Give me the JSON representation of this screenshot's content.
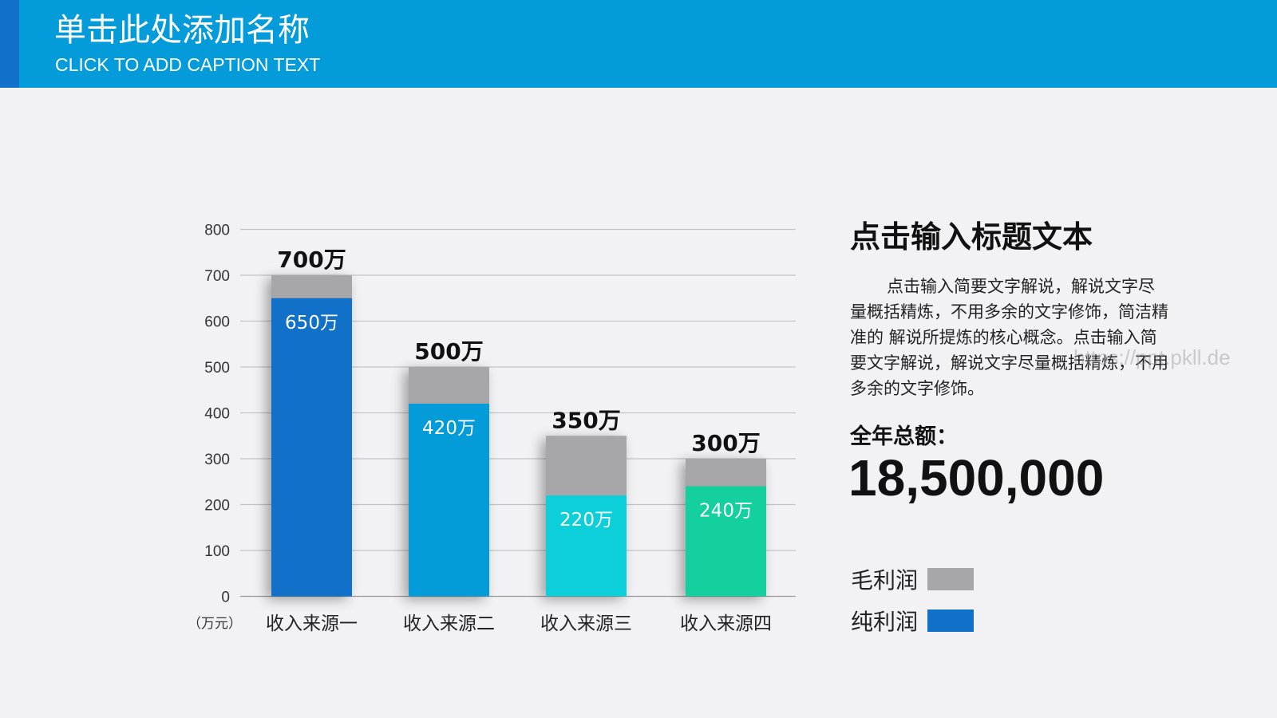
{
  "header": {
    "title": "单击此处添加名称",
    "subtitle": "CLICK TO ADD CAPTION TEXT"
  },
  "colors": {
    "header": "#039bd9",
    "accent": "#1170c8",
    "gross": "#a7a6a8",
    "bars": [
      "#1170c8",
      "#039bd8",
      "#0ccfd9",
      "#14cf9e"
    ]
  },
  "chart_data": {
    "type": "bar",
    "stacked": "overlay",
    "categories": [
      "收入来源一",
      "收入来源二",
      "收入来源三",
      "收入来源四"
    ],
    "series": [
      {
        "name": "毛利润",
        "values": [
          700,
          500,
          350,
          300
        ],
        "labels": [
          "700万",
          "500万",
          "350万",
          "300万"
        ]
      },
      {
        "name": "纯利润",
        "values": [
          650,
          420,
          220,
          240
        ],
        "labels": [
          "650万",
          "420万",
          "220万",
          "240万"
        ]
      }
    ],
    "yticks": [
      "0",
      "100",
      "200",
      "300",
      "400",
      "500",
      "600",
      "700",
      "800"
    ],
    "ylim": [
      0,
      800
    ],
    "yunit": "（万元）",
    "grid": true
  },
  "side": {
    "title": "点击输入标题文本",
    "description": "点击输入简要文字解说，解说文字尽量概括精炼，不用多余的文字修饰，简洁精准的 解说所提炼的核心概念。点击输入简要文字解说，解说文字尽量概括精炼，不用多余的文字修饰。",
    "total_label": "全年总额：",
    "total_value": "18,500,000"
  },
  "legend": [
    {
      "label": "毛利润",
      "color": "#a7a6a8"
    },
    {
      "label": "纯利润",
      "color": "#1170c8"
    }
  ],
  "watermark": "https://ppt.pkll.de"
}
